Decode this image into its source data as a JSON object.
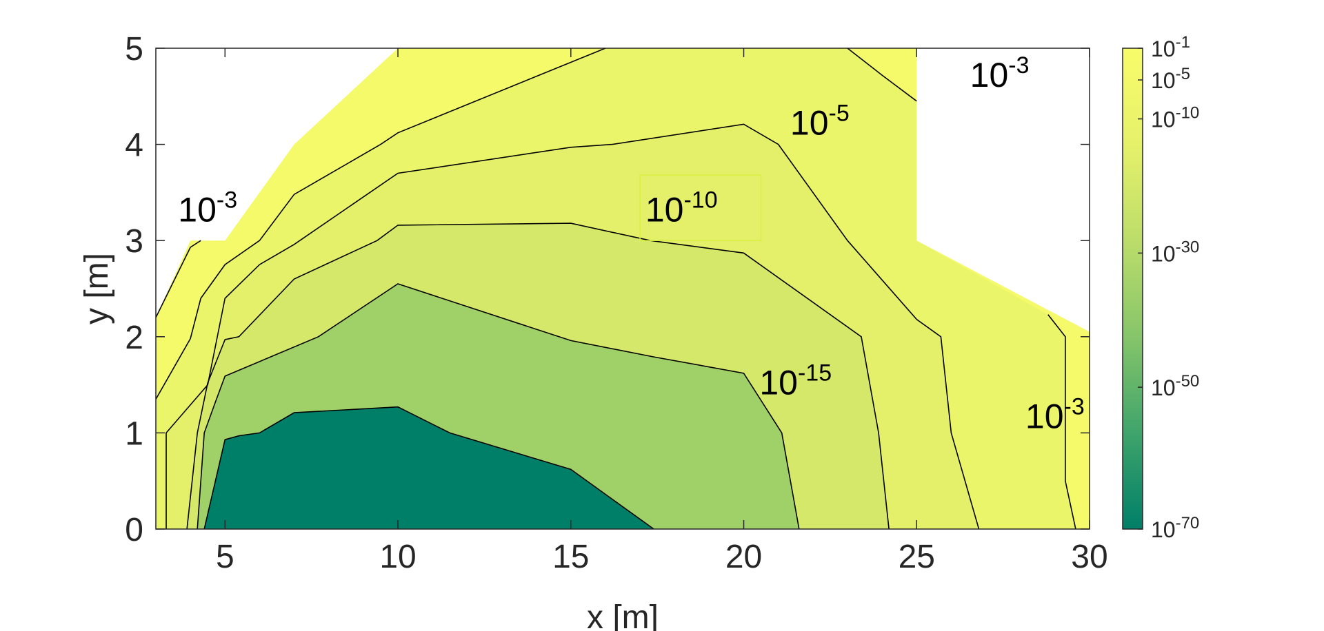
{
  "chart_data": {
    "type": "contour",
    "xlabel": "x [m]",
    "ylabel": "y [m]",
    "xlim": [
      3,
      30
    ],
    "ylim": [
      0,
      5
    ],
    "xticks": [
      "5",
      "10",
      "15",
      "20",
      "25",
      "30"
    ],
    "yticks": [
      "0",
      "1",
      "2",
      "3",
      "4",
      "5"
    ],
    "grid": false,
    "scale": "log",
    "regions": [
      {
        "color": "#f4fa6a",
        "points": [
          [
            3,
            0
          ],
          [
            3,
            2.2
          ],
          [
            4,
            3
          ],
          [
            5,
            3
          ],
          [
            7,
            4
          ],
          [
            10,
            5
          ],
          [
            25,
            5
          ],
          [
            25,
            3
          ],
          [
            30,
            2.05
          ],
          [
            30,
            0
          ]
        ]
      },
      {
        "color": "#ebf56a",
        "points": [
          [
            3,
            0
          ],
          [
            3,
            1.35
          ],
          [
            4,
            1.98
          ],
          [
            4.3,
            2.4
          ],
          [
            5,
            2.75
          ],
          [
            6,
            3
          ],
          [
            7,
            3.48
          ],
          [
            9.5,
            4
          ],
          [
            10,
            4.12
          ],
          [
            16,
            5
          ],
          [
            23,
            5
          ],
          [
            24,
            4.72
          ],
          [
            25,
            4.45
          ],
          [
            25,
            3
          ],
          [
            28.8,
            2.23
          ],
          [
            29.3,
            2
          ],
          [
            29.3,
            0.5
          ],
          [
            29.6,
            0
          ]
        ]
      },
      {
        "color": "#e4f06a",
        "points": [
          [
            3.3,
            0
          ],
          [
            3.3,
            1
          ],
          [
            4.5,
            1.5
          ],
          [
            5,
            2.4
          ],
          [
            6,
            2.75
          ],
          [
            7,
            2.96
          ],
          [
            10,
            3.7
          ],
          [
            15,
            3.97
          ],
          [
            16.2,
            4
          ],
          [
            20,
            4.21
          ],
          [
            21,
            4
          ],
          [
            23,
            3
          ],
          [
            25,
            2.18
          ],
          [
            25.7,
            2
          ],
          [
            26,
            1
          ],
          [
            26.8,
            0
          ]
        ]
      },
      {
        "color": "#d5e86a",
        "points": [
          [
            3.9,
            0
          ],
          [
            4.2,
            1
          ],
          [
            4.5,
            1.52
          ],
          [
            5,
            1.97
          ],
          [
            5.4,
            2
          ],
          [
            7,
            2.6
          ],
          [
            9.4,
            3
          ],
          [
            10,
            3.16
          ],
          [
            15,
            3.18
          ],
          [
            17.3,
            3
          ],
          [
            20,
            2.87
          ],
          [
            23.4,
            2
          ],
          [
            23.9,
            1
          ],
          [
            24.2,
            0
          ]
        ]
      },
      {
        "color": "#a0d068",
        "points": [
          [
            4.2,
            0
          ],
          [
            4.4,
            1
          ],
          [
            4.7,
            1.3
          ],
          [
            5,
            1.59
          ],
          [
            7.7,
            2
          ],
          [
            10,
            2.55
          ],
          [
            15,
            1.96
          ],
          [
            17.4,
            1.79
          ],
          [
            20,
            1.62
          ],
          [
            21.1,
            1
          ],
          [
            21.6,
            0
          ]
        ]
      },
      {
        "color": "#007f68",
        "points": [
          [
            4.4,
            0
          ],
          [
            5,
            0.93
          ],
          [
            5.4,
            0.97
          ],
          [
            6,
            1
          ],
          [
            7,
            1.21
          ],
          [
            10,
            1.27
          ],
          [
            11.5,
            1
          ],
          [
            15,
            0.62
          ],
          [
            17.4,
            0
          ]
        ]
      }
    ],
    "contours": [
      {
        "level": "1e-3",
        "points": [
          [
            3,
            2.2
          ],
          [
            4,
            2.93
          ],
          [
            4.3,
            3
          ]
        ]
      },
      {
        "level": "1e-5",
        "points": [
          [
            3,
            1.35
          ],
          [
            4,
            1.98
          ],
          [
            4.3,
            2.4
          ],
          [
            5,
            2.75
          ],
          [
            6,
            3
          ],
          [
            7,
            3.48
          ],
          [
            9.5,
            4
          ],
          [
            10,
            4.12
          ],
          [
            16,
            5
          ]
        ]
      },
      {
        "level": "1e-10",
        "points": [
          [
            3.3,
            0
          ],
          [
            3.3,
            1
          ],
          [
            4.5,
            1.5
          ],
          [
            5,
            2.4
          ],
          [
            6,
            2.75
          ],
          [
            7,
            2.96
          ],
          [
            10,
            3.7
          ],
          [
            15,
            3.97
          ],
          [
            16.2,
            4
          ],
          [
            20,
            4.21
          ],
          [
            21,
            4
          ],
          [
            23,
            3
          ],
          [
            25,
            2.18
          ],
          [
            25.7,
            2
          ],
          [
            26,
            1
          ],
          [
            26.8,
            0
          ]
        ]
      },
      {
        "level": "1e-15",
        "points": [
          [
            3.9,
            0
          ],
          [
            4.2,
            1
          ],
          [
            4.5,
            1.52
          ],
          [
            5,
            1.97
          ],
          [
            5.4,
            2
          ],
          [
            7,
            2.6
          ],
          [
            9.4,
            3
          ],
          [
            10,
            3.16
          ],
          [
            15,
            3.18
          ],
          [
            17.3,
            3
          ],
          [
            20,
            2.87
          ],
          [
            23.4,
            2
          ],
          [
            23.9,
            1
          ],
          [
            24.2,
            0
          ]
        ]
      },
      {
        "level": "1e-30",
        "points": [
          [
            4.2,
            0
          ],
          [
            4.4,
            1
          ],
          [
            4.7,
            1.3
          ],
          [
            5,
            1.59
          ],
          [
            7.7,
            2
          ],
          [
            10,
            2.55
          ],
          [
            15,
            1.96
          ],
          [
            17.4,
            1.79
          ],
          [
            20,
            1.62
          ],
          [
            21.1,
            1
          ],
          [
            21.6,
            0
          ]
        ]
      },
      {
        "level": "1e-50",
        "points": [
          [
            4.4,
            0
          ],
          [
            5,
            0.93
          ],
          [
            5.4,
            0.97
          ],
          [
            6,
            1
          ],
          [
            7,
            1.21
          ],
          [
            10,
            1.27
          ],
          [
            11.5,
            1
          ],
          [
            15,
            0.62
          ],
          [
            17.4,
            0
          ]
        ]
      },
      {
        "level": "1e-3",
        "points": [
          [
            23,
            5
          ],
          [
            24,
            4.72
          ],
          [
            25,
            4.45
          ]
        ]
      },
      {
        "level": "1e-3",
        "points": [
          [
            28.8,
            2.23
          ],
          [
            29.3,
            2
          ],
          [
            29.3,
            0.5
          ],
          [
            29.6,
            0
          ]
        ]
      }
    ],
    "contour_labels": [
      {
        "base": "10",
        "exp": "-3",
        "x": 4.5,
        "y": 3.2
      },
      {
        "base": "10",
        "exp": "-5",
        "x": 22.2,
        "y": 4.1
      },
      {
        "base": "10",
        "exp": "-10",
        "x": 18.2,
        "y": 3.2
      },
      {
        "base": "10",
        "exp": "-15",
        "x": 21.5,
        "y": 1.4
      },
      {
        "base": "10",
        "exp": "-3",
        "x": 27.4,
        "y": 4.6
      },
      {
        "base": "10",
        "exp": "-3",
        "x": 29.0,
        "y": 1.05
      }
    ],
    "colorbar": {
      "ticks": [
        {
          "base": "10",
          "exp": "-1",
          "pos": 0.0
        },
        {
          "base": "10",
          "exp": "-5",
          "pos": 0.066
        },
        {
          "base": "10",
          "exp": "-10",
          "pos": 0.147
        },
        {
          "base": "10",
          "exp": "-30",
          "pos": 0.426
        },
        {
          "base": "10",
          "exp": "-50",
          "pos": 0.705
        },
        {
          "base": "10",
          "exp": "-70",
          "pos": 1.0
        }
      ],
      "colors": [
        "#f8fc6a",
        "#e6f16a",
        "#bcdd6a",
        "#86c56a",
        "#3fa46b",
        "#007f68"
      ]
    }
  }
}
